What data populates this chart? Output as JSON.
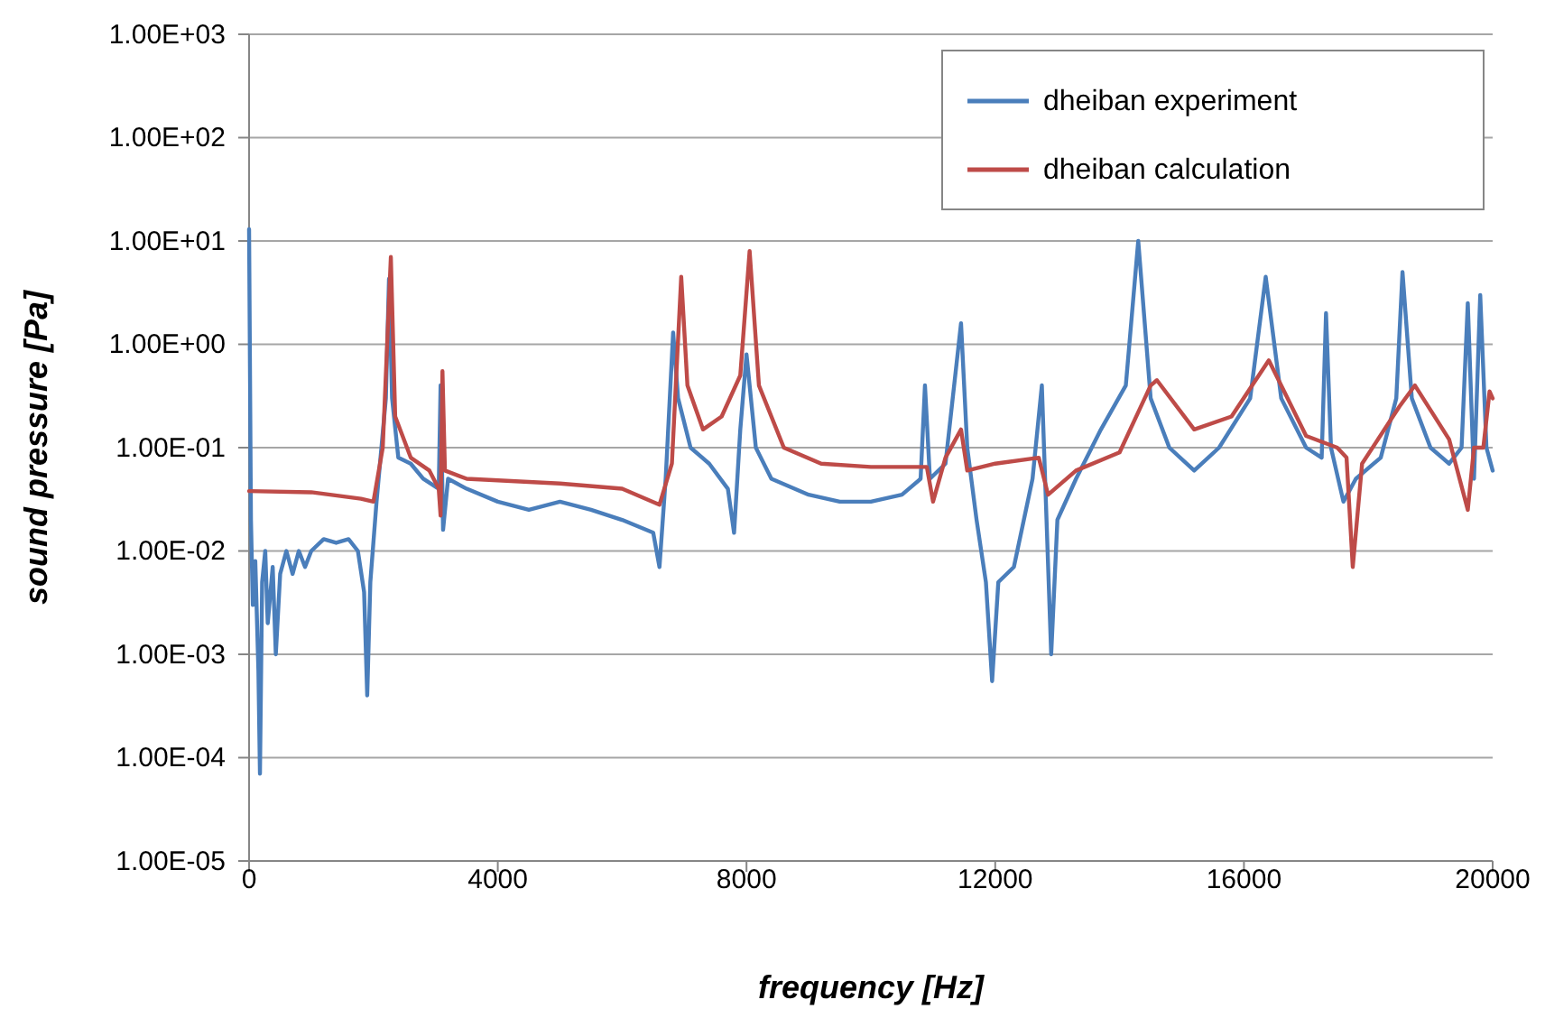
{
  "chart_data": {
    "type": "line",
    "xlabel": "frequency [Hz]",
    "ylabel": "sound pressure [Pa]",
    "log": "y",
    "grid": "y",
    "legend": "top right",
    "marker": "none",
    "line_style": "solid",
    "xlim": [
      0,
      20000
    ],
    "xticks": [
      0,
      4000,
      8000,
      12000,
      16000,
      20000
    ],
    "ylim": [
      1e-05,
      1000
    ],
    "yticks": [
      {
        "value": 1e-05,
        "label": "1.00E-05"
      },
      {
        "value": 0.0001,
        "label": "1.00E-04"
      },
      {
        "value": 0.001,
        "label": "1.00E-03"
      },
      {
        "value": 0.01,
        "label": "1.00E-02"
      },
      {
        "value": 0.1,
        "label": "1.00E-01"
      },
      {
        "value": 1,
        "label": "1.00E+00"
      },
      {
        "value": 10,
        "label": "1.00E+01"
      },
      {
        "value": 100,
        "label": "1.00E+02"
      },
      {
        "value": 1000,
        "label": "1.00E+03"
      }
    ],
    "series": [
      {
        "name": "dheiban experiment",
        "color": "#4a7ebb",
        "x": [
          0,
          30,
          60,
          100,
          150,
          175,
          210,
          260,
          300,
          380,
          430,
          500,
          600,
          700,
          800,
          900,
          1000,
          1200,
          1400,
          1600,
          1750,
          1850,
          1900,
          1950,
          2050,
          2200,
          2250,
          2300,
          2400,
          2600,
          2800,
          3050,
          3080,
          3120,
          3200,
          3500,
          4000,
          4500,
          5000,
          5500,
          6000,
          6500,
          6600,
          6700,
          6820,
          6900,
          7100,
          7400,
          7700,
          7800,
          7900,
          8000,
          8050,
          8150,
          8400,
          9000,
          9500,
          10000,
          10500,
          10800,
          10870,
          10950,
          11200,
          11450,
          11550,
          11700,
          11850,
          11950,
          12050,
          12300,
          12600,
          12750,
          12900,
          13000,
          13300,
          13700,
          14100,
          14300,
          14500,
          14800,
          15200,
          15600,
          16100,
          16350,
          16600,
          17000,
          17250,
          17320,
          17400,
          17600,
          17800,
          18200,
          18450,
          18550,
          18700,
          19000,
          19300,
          19500,
          19600,
          19700,
          19800,
          19900,
          20000
        ],
        "values": [
          13,
          0.02,
          0.003,
          0.008,
          0.0007,
          7e-05,
          0.005,
          0.01,
          0.002,
          0.007,
          0.001,
          0.006,
          0.01,
          0.006,
          0.01,
          0.007,
          0.01,
          0.013,
          0.012,
          0.013,
          0.01,
          0.004,
          0.0004,
          0.005,
          0.03,
          0.3,
          4.3,
          0.3,
          0.08,
          0.07,
          0.05,
          0.04,
          0.4,
          0.016,
          0.05,
          0.04,
          0.03,
          0.025,
          0.03,
          0.025,
          0.02,
          0.015,
          0.007,
          0.05,
          1.3,
          0.3,
          0.1,
          0.07,
          0.04,
          0.015,
          0.15,
          0.8,
          0.4,
          0.1,
          0.05,
          0.035,
          0.03,
          0.03,
          0.035,
          0.05,
          0.4,
          0.05,
          0.07,
          1.6,
          0.1,
          0.02,
          0.005,
          0.00055,
          0.005,
          0.007,
          0.05,
          0.4,
          0.001,
          0.02,
          0.05,
          0.15,
          0.4,
          10,
          0.3,
          0.1,
          0.06,
          0.1,
          0.3,
          4.5,
          0.3,
          0.1,
          0.08,
          2,
          0.1,
          0.03,
          0.05,
          0.08,
          0.3,
          5,
          0.3,
          0.1,
          0.07,
          0.1,
          2.5,
          0.05,
          3,
          0.1,
          0.06
        ]
      },
      {
        "name": "dheiban calculation",
        "color": "#be4b48",
        "x": [
          0,
          1000,
          1800,
          2000,
          2150,
          2280,
          2350,
          2600,
          2900,
          3050,
          3080,
          3110,
          3150,
          3500,
          5000,
          6000,
          6600,
          6800,
          6950,
          7050,
          7300,
          7600,
          7900,
          8050,
          8200,
          8600,
          9200,
          10000,
          10900,
          11000,
          11200,
          11450,
          11550,
          12000,
          12700,
          12850,
          13300,
          14000,
          14500,
          14600,
          15200,
          15800,
          16400,
          17000,
          17500,
          17650,
          17750,
          17900,
          18500,
          18750,
          19300,
          19600,
          19700,
          19850,
          19950,
          20000
        ],
        "values": [
          0.038,
          0.037,
          0.032,
          0.03,
          0.1,
          7,
          0.2,
          0.08,
          0.06,
          0.04,
          0.022,
          0.55,
          0.06,
          0.05,
          0.045,
          0.04,
          0.028,
          0.07,
          4.5,
          0.4,
          0.15,
          0.2,
          0.5,
          8,
          0.4,
          0.1,
          0.07,
          0.065,
          0.065,
          0.03,
          0.08,
          0.15,
          0.06,
          0.07,
          0.08,
          0.035,
          0.06,
          0.09,
          0.4,
          0.45,
          0.15,
          0.2,
          0.7,
          0.13,
          0.1,
          0.08,
          0.007,
          0.07,
          0.25,
          0.4,
          0.12,
          0.025,
          0.1,
          0.1,
          0.35,
          0.3
        ]
      }
    ]
  }
}
